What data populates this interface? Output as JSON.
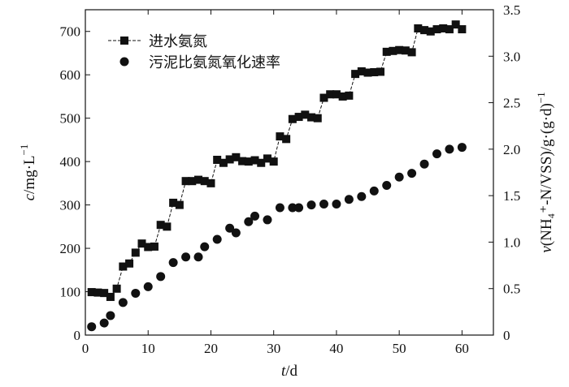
{
  "chart_data": {
    "type": "line",
    "x": {
      "label_italic": "t",
      "label_rest": "/d",
      "range": [
        0,
        65
      ],
      "ticks": [
        0,
        10,
        20,
        30,
        40,
        50,
        60
      ]
    },
    "y_left": {
      "label_italic": "c",
      "label_rest": "/mg·L",
      "label_sup": "−1",
      "range": [
        0,
        750
      ],
      "ticks": [
        0,
        100,
        200,
        300,
        400,
        500,
        600,
        700
      ]
    },
    "y_right": {
      "label_italic": "v",
      "label_rest": "(NH₄⁺-N/VSS)/g·(g·d)",
      "label_sup": "−1",
      "range": [
        0,
        3.5
      ],
      "ticks": [
        "0",
        "0.5",
        "1.0",
        "1.5",
        "2.0",
        "2.5",
        "3.0",
        "3.5"
      ]
    },
    "legend_position": "top-left",
    "series": [
      {
        "name": "进水氨氮",
        "axis": "left",
        "marker": "square",
        "line": "dashed",
        "color": "#111111",
        "points": [
          [
            1,
            99
          ],
          [
            2,
            98
          ],
          [
            3,
            97
          ],
          [
            4,
            88
          ],
          [
            5,
            107
          ],
          [
            6,
            158
          ],
          [
            7,
            165
          ],
          [
            8,
            190
          ],
          [
            9,
            211
          ],
          [
            10,
            203
          ],
          [
            11,
            204
          ],
          [
            12,
            254
          ],
          [
            13,
            250
          ],
          [
            14,
            305
          ],
          [
            15,
            300
          ],
          [
            16,
            355
          ],
          [
            17,
            355
          ],
          [
            18,
            358
          ],
          [
            19,
            355
          ],
          [
            20,
            350
          ],
          [
            21,
            404
          ],
          [
            22,
            397
          ],
          [
            23,
            405
          ],
          [
            24,
            410
          ],
          [
            25,
            401
          ],
          [
            26,
            400
          ],
          [
            27,
            403
          ],
          [
            28,
            397
          ],
          [
            29,
            407
          ],
          [
            30,
            400
          ],
          [
            31,
            458
          ],
          [
            32,
            452
          ],
          [
            33,
            498
          ],
          [
            34,
            503
          ],
          [
            35,
            508
          ],
          [
            36,
            502
          ],
          [
            37,
            500
          ],
          [
            38,
            547
          ],
          [
            39,
            555
          ],
          [
            40,
            555
          ],
          [
            41,
            550
          ],
          [
            42,
            552
          ],
          [
            43,
            602
          ],
          [
            44,
            608
          ],
          [
            45,
            605
          ],
          [
            46,
            606
          ],
          [
            47,
            607
          ],
          [
            48,
            653
          ],
          [
            49,
            655
          ],
          [
            50,
            657
          ],
          [
            51,
            656
          ],
          [
            52,
            652
          ],
          [
            53,
            707
          ],
          [
            54,
            703
          ],
          [
            55,
            700
          ],
          [
            56,
            705
          ],
          [
            57,
            707
          ],
          [
            58,
            705
          ],
          [
            59,
            716
          ],
          [
            60,
            705
          ]
        ]
      },
      {
        "name": "污泥比氨氮氧化速率",
        "axis": "right",
        "marker": "circle",
        "line": "none",
        "color": "#111111",
        "points": [
          [
            1,
            0.09
          ],
          [
            3,
            0.13
          ],
          [
            4,
            0.21
          ],
          [
            6,
            0.35
          ],
          [
            8,
            0.45
          ],
          [
            10,
            0.52
          ],
          [
            12,
            0.63
          ],
          [
            14,
            0.78
          ],
          [
            16,
            0.84
          ],
          [
            18,
            0.84
          ],
          [
            19,
            0.95
          ],
          [
            21,
            1.03
          ],
          [
            23,
            1.15
          ],
          [
            24,
            1.1
          ],
          [
            26,
            1.22
          ],
          [
            27,
            1.28
          ],
          [
            29,
            1.24
          ],
          [
            31,
            1.37
          ],
          [
            33,
            1.37
          ],
          [
            34,
            1.37
          ],
          [
            36,
            1.4
          ],
          [
            38,
            1.41
          ],
          [
            40,
            1.41
          ],
          [
            42,
            1.46
          ],
          [
            44,
            1.49
          ],
          [
            46,
            1.55
          ],
          [
            48,
            1.61
          ],
          [
            50,
            1.7
          ],
          [
            52,
            1.74
          ],
          [
            54,
            1.84
          ],
          [
            56,
            1.95
          ],
          [
            58,
            2.0
          ],
          [
            60,
            2.02
          ]
        ]
      }
    ]
  }
}
